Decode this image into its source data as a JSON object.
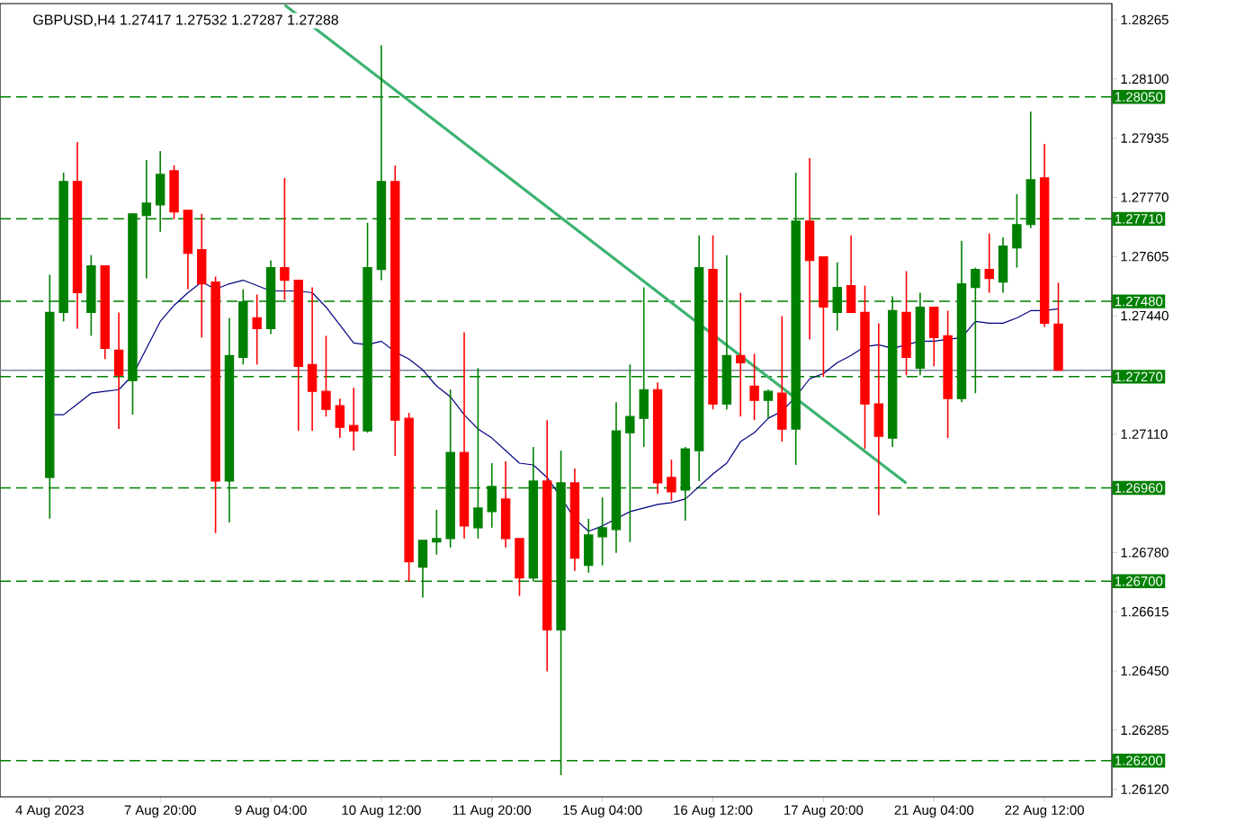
{
  "chart_data": {
    "type": "candlestick",
    "title": "GBPUSD,H4  1.27417 1.27532 1.27287 1.27288",
    "categories": [
      "4 Aug 2023",
      null,
      null,
      null,
      null,
      null,
      null,
      null,
      "7 Aug 20:00",
      null,
      null,
      null,
      null,
      null,
      null,
      null,
      "9 Aug 04:00",
      null,
      null,
      null,
      null,
      null,
      null,
      null,
      "10 Aug 12:00",
      null,
      null,
      null,
      null,
      null,
      null,
      null,
      "11 Aug 20:00",
      null,
      null,
      null,
      null,
      null,
      null,
      null,
      "15 Aug 04:00",
      null,
      null,
      null,
      null,
      null,
      null,
      null,
      "16 Aug 12:00",
      null,
      null,
      null,
      null,
      null,
      null,
      null,
      "17 Aug 20:00",
      null,
      null,
      null,
      null,
      null,
      null,
      null,
      "21 Aug 04:00",
      null,
      null,
      null,
      null,
      null,
      null,
      null,
      "22 Aug 12:00",
      null
    ],
    "ohlc": [
      [
        1.26989,
        1.27554,
        1.26874,
        1.27449
      ],
      [
        1.27449,
        1.27839,
        1.27424,
        1.27814
      ],
      [
        1.27814,
        1.27924,
        1.27404,
        1.27504
      ],
      [
        1.27449,
        1.27609,
        1.27384,
        1.27579
      ],
      [
        1.27579,
        1.27579,
        1.27319,
        1.27349
      ],
      [
        1.27344,
        1.27449,
        1.27124,
        1.27274
      ],
      [
        1.27259,
        1.27724,
        1.27164,
        1.27724
      ],
      [
        1.27719,
        1.27874,
        1.27544,
        1.27754
      ],
      [
        1.27749,
        1.27899,
        1.27674,
        1.27834
      ],
      [
        1.27844,
        1.27859,
        1.27709,
        1.27729
      ],
      [
        1.27734,
        1.27734,
        1.27514,
        1.27614
      ],
      [
        1.27624,
        1.27724,
        1.27379,
        1.27529
      ],
      [
        1.27534,
        1.27549,
        1.26834,
        1.26979
      ],
      [
        1.26979,
        1.27434,
        1.26864,
        1.27329
      ],
      [
        1.27324,
        1.27514,
        1.27304,
        1.27479
      ],
      [
        1.27434,
        1.27499,
        1.27304,
        1.27404
      ],
      [
        1.27404,
        1.27594,
        1.27389,
        1.27574
      ],
      [
        1.27574,
        1.27824,
        1.27484,
        1.27539
      ],
      [
        1.27539,
        1.27539,
        1.27119,
        1.27299
      ],
      [
        1.27304,
        1.27519,
        1.27119,
        1.27229
      ],
      [
        1.27229,
        1.27384,
        1.27159,
        1.27179
      ],
      [
        1.27189,
        1.27209,
        1.27099,
        1.27129
      ],
      [
        1.27134,
        1.27239,
        1.27064,
        1.27119
      ],
      [
        1.27119,
        1.27699,
        1.27114,
        1.27574
      ],
      [
        1.27569,
        1.28194,
        1.27539,
        1.27814
      ],
      [
        1.27814,
        1.27859,
        1.27049,
        1.27149
      ],
      [
        1.27154,
        1.27169,
        1.26699,
        1.26754
      ],
      [
        1.26739,
        1.26814,
        1.26654,
        1.26814
      ],
      [
        1.26809,
        1.26899,
        1.26774,
        1.26819
      ],
      [
        1.26819,
        1.27234,
        1.26794,
        1.27059
      ],
      [
        1.27059,
        1.27394,
        1.26819,
        1.26854
      ],
      [
        1.26849,
        1.27294,
        1.26819,
        1.26904
      ],
      [
        1.26894,
        1.27029,
        1.26849,
        1.26964
      ],
      [
        1.26929,
        1.27034,
        1.26794,
        1.26819
      ],
      [
        1.26819,
        1.26819,
        1.26659,
        1.26709
      ],
      [
        1.26709,
        1.27074,
        1.26699,
        1.26979
      ],
      [
        1.26979,
        1.27149,
        1.26449,
        1.26564
      ],
      [
        1.26564,
        1.27064,
        1.26159,
        1.26974
      ],
      [
        1.26974,
        1.27014,
        1.26729,
        1.26764
      ],
      [
        1.26744,
        1.26874,
        1.26724,
        1.26829
      ],
      [
        1.26824,
        1.26934,
        1.26744,
        1.26849
      ],
      [
        1.26844,
        1.27199,
        1.26779,
        1.27119
      ],
      [
        1.27114,
        1.27304,
        1.26809,
        1.27159
      ],
      [
        1.27154,
        1.27519,
        1.27074,
        1.27234
      ],
      [
        1.27234,
        1.27254,
        1.26944,
        1.26974
      ],
      [
        1.26989,
        1.27039,
        1.26924,
        1.26949
      ],
      [
        1.26954,
        1.27074,
        1.26869,
        1.27069
      ],
      [
        1.27064,
        1.27664,
        1.26979,
        1.27574
      ],
      [
        1.27569,
        1.27664,
        1.27179,
        1.27194
      ],
      [
        1.27194,
        1.27609,
        1.27179,
        1.27329
      ],
      [
        1.27329,
        1.27504,
        1.27159,
        1.27309
      ],
      [
        1.27244,
        1.27334,
        1.27149,
        1.27204
      ],
      [
        1.27204,
        1.27234,
        1.27154,
        1.27229
      ],
      [
        1.27224,
        1.27439,
        1.27089,
        1.27124
      ],
      [
        1.27124,
        1.27839,
        1.27024,
        1.27704
      ],
      [
        1.27704,
        1.27879,
        1.27374,
        1.27594
      ],
      [
        1.27604,
        1.27604,
        1.27269,
        1.27464
      ],
      [
        1.27449,
        1.27589,
        1.27399,
        1.27519
      ],
      [
        1.27524,
        1.27664,
        1.27449,
        1.27449
      ],
      [
        1.27449,
        1.27524,
        1.27069,
        1.27194
      ],
      [
        1.27194,
        1.27419,
        1.26884,
        1.27104
      ],
      [
        1.27099,
        1.27494,
        1.27074,
        1.27454
      ],
      [
        1.27449,
        1.27564,
        1.27274,
        1.27324
      ],
      [
        1.27294,
        1.27504,
        1.27274,
        1.27464
      ],
      [
        1.27464,
        1.27464,
        1.27299,
        1.27379
      ],
      [
        1.27384,
        1.27454,
        1.27099,
        1.27209
      ],
      [
        1.27209,
        1.27649,
        1.27199,
        1.27529
      ],
      [
        1.27519,
        1.27574,
        1.27224,
        1.27569
      ],
      [
        1.27569,
        1.27669,
        1.27504,
        1.27544
      ],
      [
        1.27534,
        1.27659,
        1.27504,
        1.27634
      ],
      [
        1.27629,
        1.27779,
        1.27574,
        1.27694
      ],
      [
        1.27694,
        1.28009,
        1.27684,
        1.27819
      ],
      [
        1.27824,
        1.27919,
        1.27409,
        1.27419
      ],
      [
        1.27417,
        1.27532,
        1.27287,
        1.27288
      ]
    ],
    "colors": [
      "#008000",
      "#008000",
      "#ff0000",
      "#008000",
      "#ff0000",
      "#ff0000",
      "#008000",
      "#008000",
      "#008000",
      "#ff0000",
      "#ff0000",
      "#ff0000",
      "#ff0000",
      "#008000",
      "#008000",
      "#ff0000",
      "#008000",
      "#ff0000",
      "#ff0000",
      "#ff0000",
      "#ff0000",
      "#ff0000",
      "#ff0000",
      "#008000",
      "#008000",
      "#ff0000",
      "#ff0000",
      "#008000",
      "#008000",
      "#008000",
      "#ff0000",
      "#008000",
      "#008000",
      "#ff0000",
      "#ff0000",
      "#008000",
      "#ff0000",
      "#008000",
      "#ff0000",
      "#008000",
      "#008000",
      "#008000",
      "#008000",
      "#008000",
      "#ff0000",
      "#ff0000",
      "#008000",
      "#008000",
      "#ff0000",
      "#008000",
      "#ff0000",
      "#ff0000",
      "#008000",
      "#ff0000",
      "#008000",
      "#ff0000",
      "#ff0000",
      "#008000",
      "#ff0000",
      "#ff0000",
      "#ff0000",
      "#008000",
      "#ff0000",
      "#008000",
      "#ff0000",
      "#ff0000",
      "#008000",
      "#008000",
      "#ff0000",
      "#008000",
      "#008000",
      "#008000",
      "#ff0000",
      "#ff0000"
    ],
    "series": [
      {
        "type": "line",
        "color": "#000080",
        "values": [
          1.27164,
          1.27164,
          1.27194,
          1.27224,
          1.27229,
          1.27234,
          1.27274,
          1.27349,
          1.27424,
          1.27469,
          1.27504,
          1.27534,
          1.27514,
          1.27529,
          1.27539,
          1.27524,
          1.27509,
          1.27509,
          1.27509,
          1.27504,
          1.27464,
          1.27414,
          1.27364,
          1.27359,
          1.27369,
          1.27339,
          1.27319,
          1.27289,
          1.27244,
          1.27214,
          1.27164,
          1.27124,
          1.27099,
          1.27064,
          1.27029,
          1.27024,
          1.26989,
          1.26934,
          1.26874,
          1.26839,
          1.26854,
          1.26874,
          1.26894,
          1.26904,
          1.26914,
          1.26919,
          1.26929,
          1.26964,
          1.26999,
          1.27029,
          1.27089,
          1.27114,
          1.27154,
          1.27174,
          1.27214,
          1.27264,
          1.27279,
          1.27309,
          1.27329,
          1.27354,
          1.27359,
          1.27349,
          1.27359,
          1.27369,
          1.27369,
          1.27374,
          1.27379,
          1.27424,
          1.27419,
          1.27419,
          1.27434,
          1.27454,
          1.27454,
          1.27459
        ]
      },
      {
        "type": "line",
        "color": "#3cb371",
        "values": [
          null,
          null,
          null,
          null,
          null,
          null,
          null,
          null,
          null,
          null,
          null,
          null,
          null,
          null,
          null,
          null,
          null,
          1.28306,
          null,
          null,
          null,
          null,
          null,
          null,
          null,
          null,
          null,
          null,
          null,
          null,
          null,
          null,
          null,
          null,
          null,
          null,
          null,
          null,
          null,
          null,
          null,
          null,
          null,
          null,
          null,
          null,
          null,
          null,
          null,
          null,
          null,
          null,
          null,
          null,
          null,
          null,
          null,
          null,
          null,
          null,
          null,
          null,
          1.26973,
          null,
          null,
          null,
          null,
          null,
          null,
          null,
          null,
          null,
          null,
          null
        ]
      }
    ],
    "ylim": [
      1.26099,
      1.2831
    ],
    "yticks": [
      {
        "value": 1.28265,
        "label": "1.28265"
      },
      {
        "value": 1.281,
        "label": "1.28100"
      },
      {
        "value": 1.27935,
        "label": "1.27935"
      },
      {
        "value": 1.2777,
        "label": "1.27770"
      },
      {
        "value": 1.27605,
        "label": "1.27605"
      },
      {
        "value": 1.2744,
        "label": "1.27440"
      },
      {
        "value": 1.2711,
        "label": "1.27110"
      },
      {
        "value": 1.2678,
        "label": "1.26780"
      },
      {
        "value": 1.26615,
        "label": "1.26615"
      },
      {
        "value": 1.2645,
        "label": "1.26450"
      },
      {
        "value": 1.26285,
        "label": "1.26285"
      },
      {
        "value": 1.2612,
        "label": "1.26120"
      }
    ],
    "ref_lines": [
      {
        "axis": "y",
        "value": 1.27288,
        "color": "#778899",
        "line_style": "solid"
      },
      {
        "axis": "y",
        "value": 1.2805,
        "label": "1.28050",
        "color": "#008000",
        "line_style": "dashed"
      },
      {
        "axis": "y",
        "value": 1.2771,
        "label": "1.27710",
        "color": "#008000",
        "line_style": "dashed"
      },
      {
        "axis": "y",
        "value": 1.2748,
        "label": "1.27480",
        "color": "#008000",
        "line_style": "dashed"
      },
      {
        "axis": "y",
        "value": 1.2727,
        "label": "1.27270",
        "color": "#008000",
        "line_style": "dashed"
      },
      {
        "axis": "y",
        "value": 1.2696,
        "label": "1.26960",
        "color": "#008000",
        "line_style": "dashed"
      },
      {
        "axis": "y",
        "value": 1.267,
        "label": "1.26700",
        "color": "#008000",
        "line_style": "dashed"
      },
      {
        "axis": "y",
        "value": 1.262,
        "label": "1.26200",
        "color": "#008000",
        "line_style": "dashed"
      }
    ]
  }
}
